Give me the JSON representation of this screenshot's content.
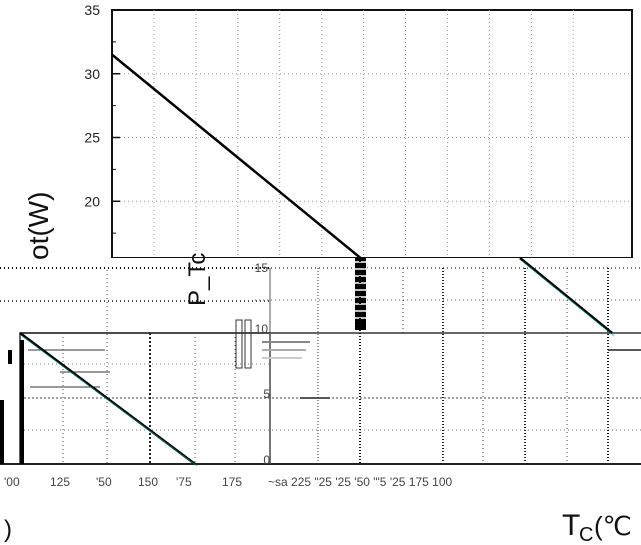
{
  "chart_data": {
    "type": "line",
    "title": "",
    "ylabel": "P_Tot(W)",
    "ylabel_visible": "P_Tc",
    "ylabel_fragment": "ot(W)",
    "xlabel": "T_C(℃)",
    "xlabel_main": "T",
    "xlabel_sub": "C",
    "xlabel_unit": "(℃",
    "xlabel_fragment": ")",
    "ylim": [
      0,
      35
    ],
    "yticks": [
      "35",
      "30",
      "25",
      "20",
      "15"
    ],
    "xlim": [
      0,
      175
    ],
    "series": [
      {
        "x": [
          0,
          150
        ],
        "y": [
          31.5,
          15.2
        ]
      }
    ],
    "grid": true,
    "scan_artifacts": {
      "left_panel_xticks": [
        "100",
        "125",
        "150",
        "175"
      ],
      "left_panel_xtick_text": [
        "'00",
        "125",
        "'50",
        "'75",
        "175"
      ],
      "middle_glitch_text": "~sa 225 \"25 '25 '50 \"'5 '25 175 100",
      "right_panel_yticks": [
        "15",
        "10",
        "5",
        "0"
      ]
    }
  }
}
